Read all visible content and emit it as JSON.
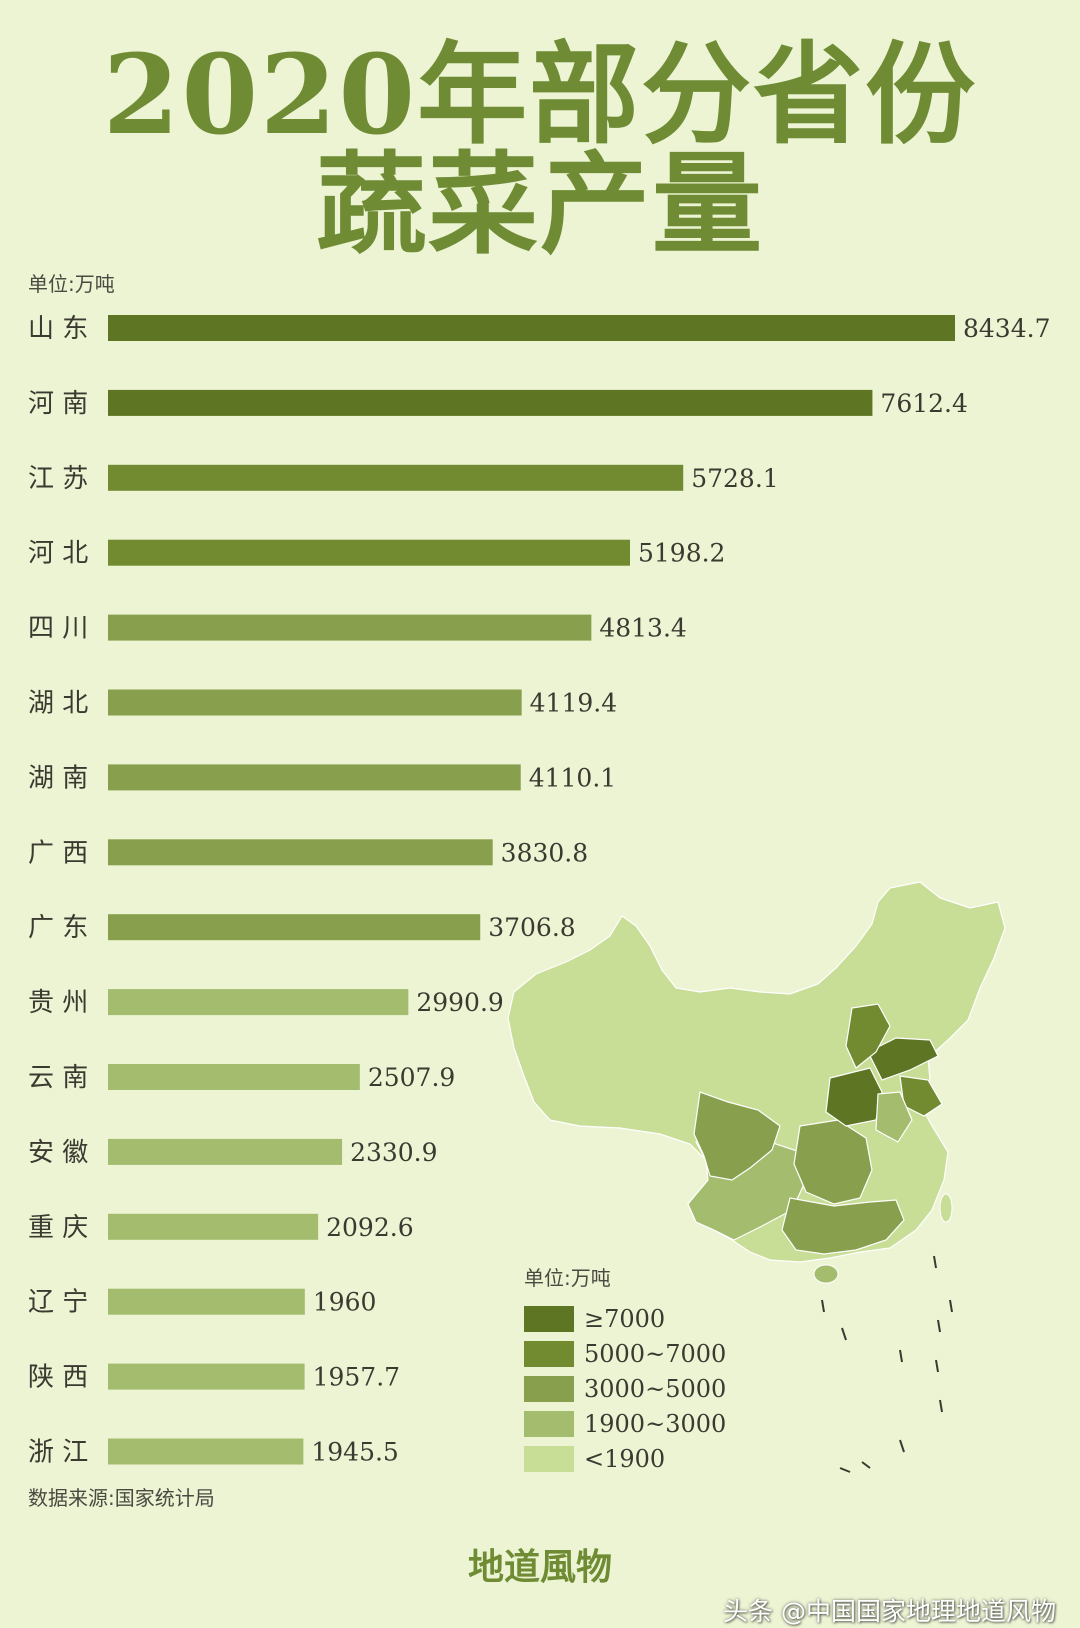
{
  "header": {
    "title_line1": "2020年部分省份",
    "title_line2": "蔬菜产量",
    "unit": "单位:万吨"
  },
  "chart_data": {
    "type": "bar",
    "orientation": "horizontal",
    "categories": [
      "山 东",
      "河 南",
      "江 苏",
      "河 北",
      "四 川",
      "湖 北",
      "湖 南",
      "广 西",
      "广 东",
      "贵 州",
      "云 南",
      "安 徽",
      "重 庆",
      "辽 宁",
      "陕 西",
      "浙 江"
    ],
    "values": [
      8434.7,
      7612.4,
      5728.1,
      5198.2,
      4813.4,
      4119.4,
      4110.1,
      3830.8,
      3706.8,
      2990.9,
      2507.9,
      2330.9,
      2092.6,
      1960,
      1957.7,
      1945.5
    ],
    "value_labels": [
      "8434.7",
      "7612.4",
      "5728.1",
      "5198.2",
      "4813.4",
      "4119.4",
      "4110.1",
      "3830.8",
      "3706.8",
      "2990.9",
      "2507.9",
      "2330.9",
      "2092.6",
      "1960",
      "1957.7",
      "1945.5"
    ],
    "xlim": [
      0,
      8434.7
    ],
    "grid": false,
    "legend_position": "bottom-right"
  },
  "legend": {
    "title": "单位:万吨",
    "items": [
      {
        "label": "≥7000",
        "color": "#5e7523",
        "min": 7000,
        "max": 100000
      },
      {
        "label": "5000~7000",
        "color": "#728a30",
        "min": 5000,
        "max": 7000
      },
      {
        "label": "3000~5000",
        "color": "#88a04d",
        "min": 3000,
        "max": 5000
      },
      {
        "label": "1900~3000",
        "color": "#a3bc6d",
        "min": 1900,
        "max": 3000
      },
      {
        "label": "<1900",
        "color": "#c8dd95",
        "min": 0,
        "max": 1900
      }
    ]
  },
  "footer": {
    "source": "数据来源:国家统计局",
    "brand": "地道風物",
    "watermark": "头条 @中国国家地理地道风物"
  }
}
